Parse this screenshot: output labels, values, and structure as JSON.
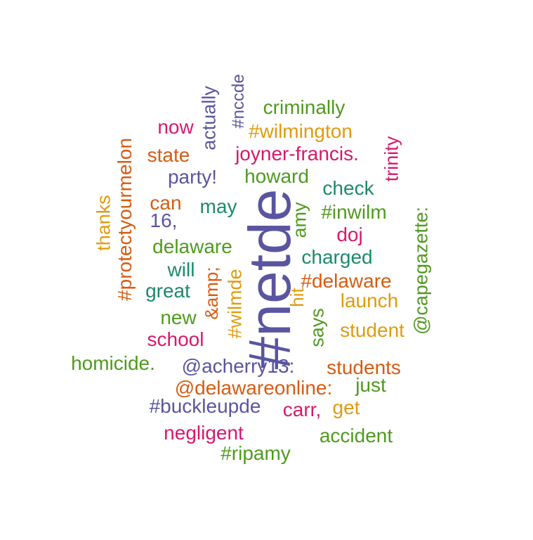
{
  "palette": {
    "purple": "#5a55a0",
    "green": "#4f9a1e",
    "orange": "#d65c12",
    "magenta": "#d6196b",
    "teal": "#1b8a6b",
    "gold": "#df9b0e"
  },
  "words": [
    {
      "key": "netde",
      "text": "#netde",
      "color": "#5a55a0",
      "orientation": "vertical"
    },
    {
      "key": "nccde",
      "text": "#nccde",
      "color": "#5a55a0",
      "orientation": "vertical"
    },
    {
      "key": "actually",
      "text": "actually",
      "color": "#5a55a0",
      "orientation": "vertical"
    },
    {
      "key": "criminally",
      "text": "criminally",
      "color": "#4f9a1e",
      "orientation": "horizontal"
    },
    {
      "key": "now",
      "text": "now",
      "color": "#d6196b",
      "orientation": "horizontal"
    },
    {
      "key": "wilmington",
      "text": "#wilmington",
      "color": "#df9b0e",
      "orientation": "horizontal"
    },
    {
      "key": "protectyourmelon",
      "text": "#protectyourmelon",
      "color": "#d65c12",
      "orientation": "vertical"
    },
    {
      "key": "state",
      "text": "state",
      "color": "#d65c12",
      "orientation": "horizontal"
    },
    {
      "key": "joyner_francis",
      "text": "joyner-francis.",
      "color": "#d6196b",
      "orientation": "horizontal"
    },
    {
      "key": "trinity",
      "text": "trinity",
      "color": "#d6196b",
      "orientation": "vertical"
    },
    {
      "key": "party",
      "text": "party!",
      "color": "#5a55a0",
      "orientation": "horizontal"
    },
    {
      "key": "howard",
      "text": "howard",
      "color": "#4f9a1e",
      "orientation": "horizontal"
    },
    {
      "key": "check",
      "text": "check",
      "color": "#1b8a6b",
      "orientation": "horizontal"
    },
    {
      "key": "thanks",
      "text": "thanks",
      "color": "#df9b0e",
      "orientation": "vertical"
    },
    {
      "key": "can",
      "text": "can",
      "color": "#d65c12",
      "orientation": "horizontal"
    },
    {
      "key": "may",
      "text": "may",
      "color": "#1b8a6b",
      "orientation": "horizontal"
    },
    {
      "key": "amy",
      "text": "amy",
      "color": "#4f9a1e",
      "orientation": "vertical"
    },
    {
      "key": "inwilm",
      "text": "#inwilm",
      "color": "#4f9a1e",
      "orientation": "horizontal"
    },
    {
      "key": "capegazette",
      "text": "@capegazette:",
      "color": "#4f9a1e",
      "orientation": "vertical"
    },
    {
      "key": "n16",
      "text": "16,",
      "color": "#5a55a0",
      "orientation": "horizontal"
    },
    {
      "key": "doj",
      "text": "doj",
      "color": "#d6196b",
      "orientation": "horizontal"
    },
    {
      "key": "delaware",
      "text": "delaware",
      "color": "#4f9a1e",
      "orientation": "horizontal"
    },
    {
      "key": "charged",
      "text": "charged",
      "color": "#1b8a6b",
      "orientation": "horizontal"
    },
    {
      "key": "will",
      "text": "will",
      "color": "#1b8a6b",
      "orientation": "horizontal"
    },
    {
      "key": "amp",
      "text": "&amp;",
      "color": "#d65c12",
      "orientation": "vertical"
    },
    {
      "key": "wilmde",
      "text": "#wilmde",
      "color": "#df9b0e",
      "orientation": "vertical"
    },
    {
      "key": "hashdelaware",
      "text": "#delaware",
      "color": "#d65c12",
      "orientation": "horizontal"
    },
    {
      "key": "great",
      "text": "great",
      "color": "#1b8a6b",
      "orientation": "horizontal"
    },
    {
      "key": "hit",
      "text": "hit",
      "color": "#df9b0e",
      "orientation": "vertical"
    },
    {
      "key": "launch",
      "text": "launch",
      "color": "#df9b0e",
      "orientation": "horizontal"
    },
    {
      "key": "new",
      "text": "new",
      "color": "#4f9a1e",
      "orientation": "horizontal"
    },
    {
      "key": "says",
      "text": "says",
      "color": "#4f9a1e",
      "orientation": "vertical"
    },
    {
      "key": "student",
      "text": "student",
      "color": "#df9b0e",
      "orientation": "horizontal"
    },
    {
      "key": "school",
      "text": "school",
      "color": "#d6196b",
      "orientation": "horizontal"
    },
    {
      "key": "homicide",
      "text": "homicide.",
      "color": "#4f9a1e",
      "orientation": "horizontal"
    },
    {
      "key": "acherry13",
      "text": "@acherry13:",
      "color": "#5a55a0",
      "orientation": "horizontal"
    },
    {
      "key": "students",
      "text": "students",
      "color": "#d65c12",
      "orientation": "horizontal"
    },
    {
      "key": "delawareonline",
      "text": "@delawareonline:",
      "color": "#d65c12",
      "orientation": "horizontal"
    },
    {
      "key": "just",
      "text": "just",
      "color": "#4f9a1e",
      "orientation": "horizontal"
    },
    {
      "key": "buckleupde",
      "text": "#buckleupde",
      "color": "#5a55a0",
      "orientation": "horizontal"
    },
    {
      "key": "carr",
      "text": "carr,",
      "color": "#d6196b",
      "orientation": "horizontal"
    },
    {
      "key": "get",
      "text": "get",
      "color": "#df9b0e",
      "orientation": "horizontal"
    },
    {
      "key": "negligent",
      "text": "negligent",
      "color": "#d6196b",
      "orientation": "horizontal"
    },
    {
      "key": "accident",
      "text": "accident",
      "color": "#4f9a1e",
      "orientation": "horizontal"
    },
    {
      "key": "ripamy",
      "text": "#ripamy",
      "color": "#4f9a1e",
      "orientation": "horizontal"
    }
  ]
}
